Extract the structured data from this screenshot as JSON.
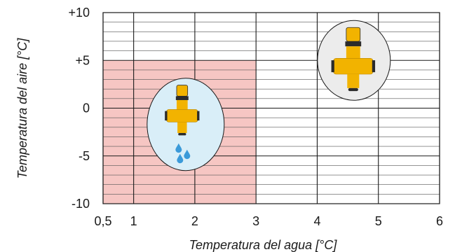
{
  "chart_data": {
    "type": "region",
    "xlabel": "Temperatura del agua [°C]",
    "ylabel": "Temperatura del aire [°C]",
    "xlim": [
      0.5,
      6
    ],
    "ylim": [
      -10,
      10
    ],
    "x_ticks": [
      {
        "value": 0.5,
        "label": "0,5"
      },
      {
        "value": 1,
        "label": "1"
      },
      {
        "value": 2,
        "label": "2"
      },
      {
        "value": 3,
        "label": "3"
      },
      {
        "value": 4,
        "label": "4"
      },
      {
        "value": 5,
        "label": "5"
      },
      {
        "value": 6,
        "label": "6"
      }
    ],
    "y_ticks": [
      {
        "value": 10,
        "label": "+10"
      },
      {
        "value": 5,
        "label": "+5"
      },
      {
        "value": 0,
        "label": "0"
      },
      {
        "value": -5,
        "label": "-5"
      },
      {
        "value": -10,
        "label": "-10"
      }
    ],
    "minor_y_step": 1,
    "grid": true,
    "frost_zone": {
      "x": [
        0.5,
        3
      ],
      "y": [
        -10,
        5
      ],
      "color": "#f6c6c3"
    },
    "markers": [
      {
        "kind": "valve-dripping",
        "x": 1.85,
        "y": -1.7,
        "fill": "#d9eef8"
      },
      {
        "kind": "valve-closed",
        "x": 4.6,
        "y": 5.0,
        "fill": "#ececec"
      }
    ]
  },
  "colors": {
    "valve_yellow": "#f2b300",
    "valve_dark": "#2b2b2b",
    "drop_blue": "#3b9ad9",
    "grid": "#1a1a1a",
    "minor_grid": "#555555"
  }
}
